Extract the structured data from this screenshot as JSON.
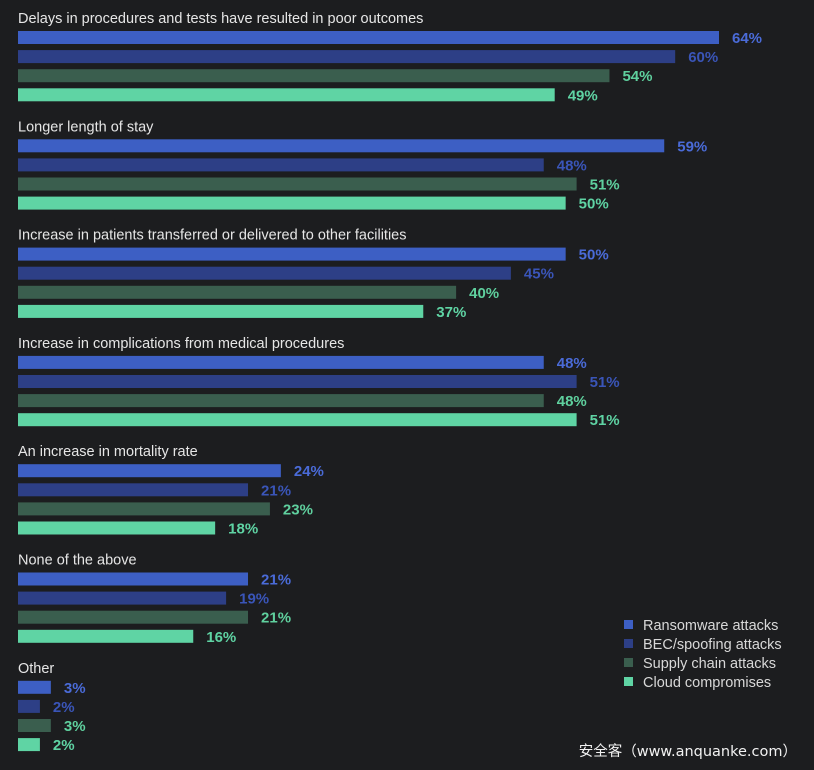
{
  "chart_data": {
    "type": "bar",
    "orientation": "horizontal",
    "unit": "%",
    "categories": [
      "Delays in procedures and tests have resulted in poor outcomes",
      "Longer length of stay",
      "Increase in patients transferred or delivered to other facilities",
      "Increase in complications from medical procedures",
      "An increase in mortality rate",
      "None of the above",
      "Other"
    ],
    "series": [
      {
        "name": "Ransomware attacks",
        "color": "#3d5fc4",
        "label_color": "#4a6bd8",
        "values": [
          64,
          59,
          50,
          48,
          24,
          21,
          3
        ]
      },
      {
        "name": "BEC/spoofing attacks",
        "color": "#2d3f86",
        "label_color": "#3a55b8",
        "values": [
          60,
          48,
          45,
          51,
          21,
          19,
          2
        ]
      },
      {
        "name": "Supply chain attacks",
        "color": "#3a5e4e",
        "label_color": "#5fd09e",
        "values": [
          54,
          51,
          40,
          48,
          23,
          21,
          3
        ]
      },
      {
        "name": "Cloud compromises",
        "color": "#5fd4a4",
        "label_color": "#5fd4a4",
        "values": [
          49,
          50,
          37,
          51,
          18,
          16,
          2
        ]
      }
    ],
    "xlim": [
      0,
      64
    ],
    "legend_position": "bottom-right",
    "grid": false
  },
  "watermark": "安全客（www.anquanke.com）"
}
